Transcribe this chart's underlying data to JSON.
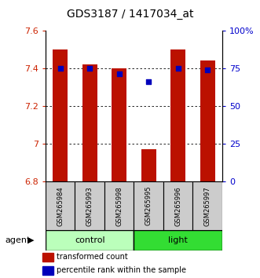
{
  "title": "GDS3187 / 1417034_at",
  "samples": [
    "GSM265984",
    "GSM265993",
    "GSM265998",
    "GSM265995",
    "GSM265996",
    "GSM265997"
  ],
  "group_colors": [
    "#bbffbb",
    "#33ee33"
  ],
  "bar_values": [
    7.5,
    7.42,
    7.4,
    6.97,
    7.5,
    7.44
  ],
  "percentile_values": [
    7.4,
    7.4,
    7.37,
    7.33,
    7.4,
    7.39
  ],
  "ylim": [
    6.8,
    7.6
  ],
  "y2lim": [
    0,
    100
  ],
  "yticks": [
    6.8,
    7.0,
    7.2,
    7.4,
    7.6
  ],
  "y2ticks": [
    0,
    25,
    50,
    75,
    100
  ],
  "y2ticklabels": [
    "0",
    "25",
    "50",
    "75",
    "100%"
  ],
  "bar_color": "#bb1100",
  "percentile_color": "#0000bb",
  "bar_width": 0.5,
  "sample_bg": "#cccccc",
  "ylabel_color": "#cc2200",
  "y2label_color": "#0000cc",
  "gridline_ticks": [
    7.0,
    7.2,
    7.4
  ],
  "control_color": "#bbffbb",
  "light_color": "#33dd33"
}
